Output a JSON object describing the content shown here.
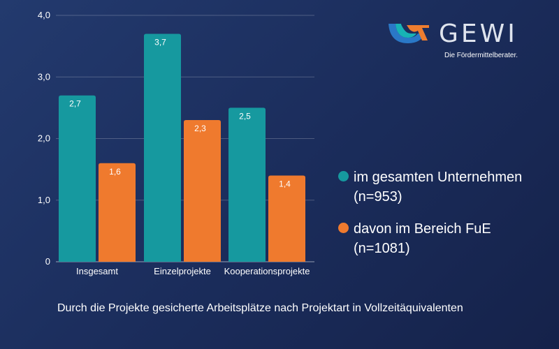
{
  "logo": {
    "word": "GEWI",
    "tagline": "Die Fördermittelberater.",
    "colors": {
      "teal": "#17b3b5",
      "orange": "#ee7d2f",
      "blue": "#2a78c7"
    }
  },
  "chart_data": {
    "type": "bar",
    "categories": [
      "Insgesamt",
      "Einzelprojekte",
      "Kooperationsprojekte"
    ],
    "series": [
      {
        "name": "im gesamten Unternehmen (n=953)",
        "values": [
          2.7,
          3.7,
          2.5
        ],
        "labels": [
          "2,7",
          "3,7",
          "2,5"
        ],
        "color": "#16999f"
      },
      {
        "name": "davon im Bereich FuE (n=1081)",
        "values": [
          1.6,
          2.3,
          1.4
        ],
        "labels": [
          "1,6",
          "2,3",
          "1,4"
        ],
        "color": "#ef7a2e"
      }
    ],
    "ylim": [
      0,
      4
    ],
    "yticks": [
      0,
      1,
      2,
      3,
      4
    ],
    "ytick_labels": [
      "0",
      "1,0",
      "2,0",
      "3,0",
      "4,0"
    ],
    "grid": true,
    "legend_position": "right",
    "title": "",
    "xlabel": "",
    "ylabel": ""
  },
  "legend": [
    {
      "line1": "im gesamten Unternehmen",
      "line2": "(n=953)",
      "color": "#16999f"
    },
    {
      "line1": "davon im Bereich FuE",
      "line2": "(n=1081)",
      "color": "#ef7a2e"
    }
  ],
  "caption": "Durch die Projekte gesicherte Arbeitsplätze nach Projektart in Vollzeitäquivalenten"
}
